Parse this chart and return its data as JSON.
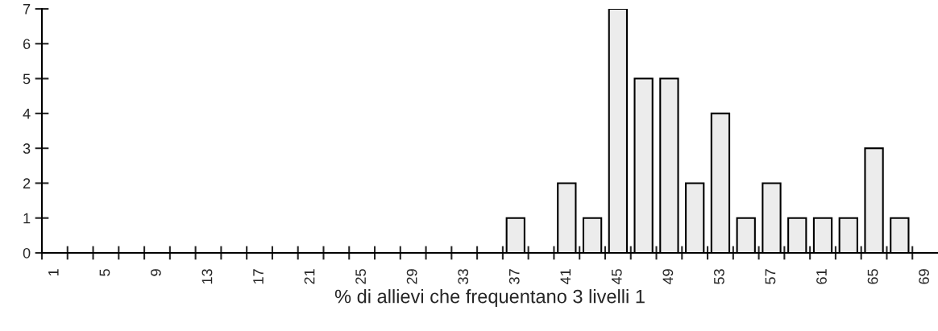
{
  "chart_data": {
    "type": "bar",
    "xlabel": "% di allievi che frequentano 3 livelli 1",
    "categories": [
      "1",
      null,
      "5",
      null,
      "9",
      null,
      "13",
      null,
      "17",
      null,
      "21",
      null,
      "25",
      null,
      "29",
      null,
      "33",
      null,
      "37",
      null,
      "41",
      null,
      "45",
      null,
      "49",
      null,
      "53",
      null,
      "57",
      null,
      "61",
      null,
      "65",
      null,
      "69"
    ],
    "values": [
      0,
      0,
      0,
      0,
      0,
      0,
      0,
      0,
      0,
      0,
      0,
      0,
      0,
      0,
      0,
      0,
      0,
      0,
      1,
      0,
      2,
      1,
      7,
      5,
      5,
      2,
      4,
      1,
      2,
      1,
      1,
      1,
      3,
      1,
      0
    ],
    "color": "#ececec",
    "ylim": [
      0,
      7
    ],
    "yticks": [
      0,
      1,
      2,
      3,
      4,
      5,
      6,
      7
    ],
    "grid": false,
    "legend": false
  }
}
